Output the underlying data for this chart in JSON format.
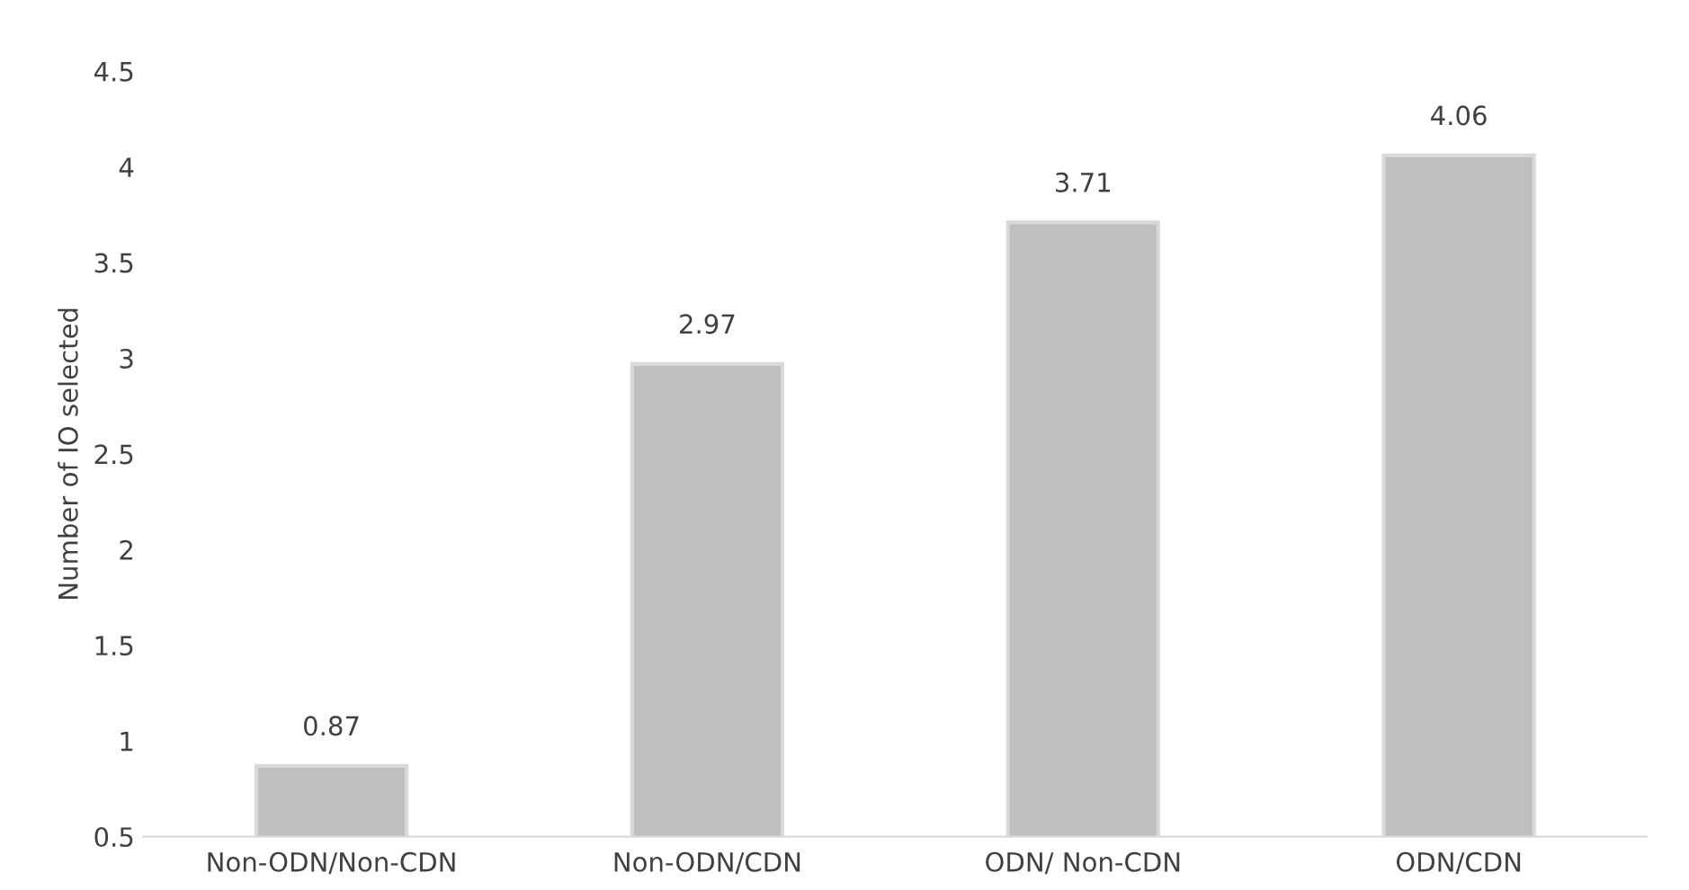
{
  "chart_data": {
    "type": "bar",
    "ylabel": "Number of IO selected",
    "categories": [
      "Non-ODN/Non-CDN",
      "Non-ODN/CDN",
      "ODN/ Non-CDN",
      "ODN/CDN"
    ],
    "values": [
      0.87,
      2.97,
      3.71,
      4.06
    ],
    "color": "#bfbfbf",
    "ylim": [
      0.5,
      4.5
    ],
    "yticks": [
      0.5,
      1,
      1.5,
      2,
      2.5,
      3,
      3.5,
      4,
      4.5
    ],
    "grid": false,
    "data_labels": true
  }
}
